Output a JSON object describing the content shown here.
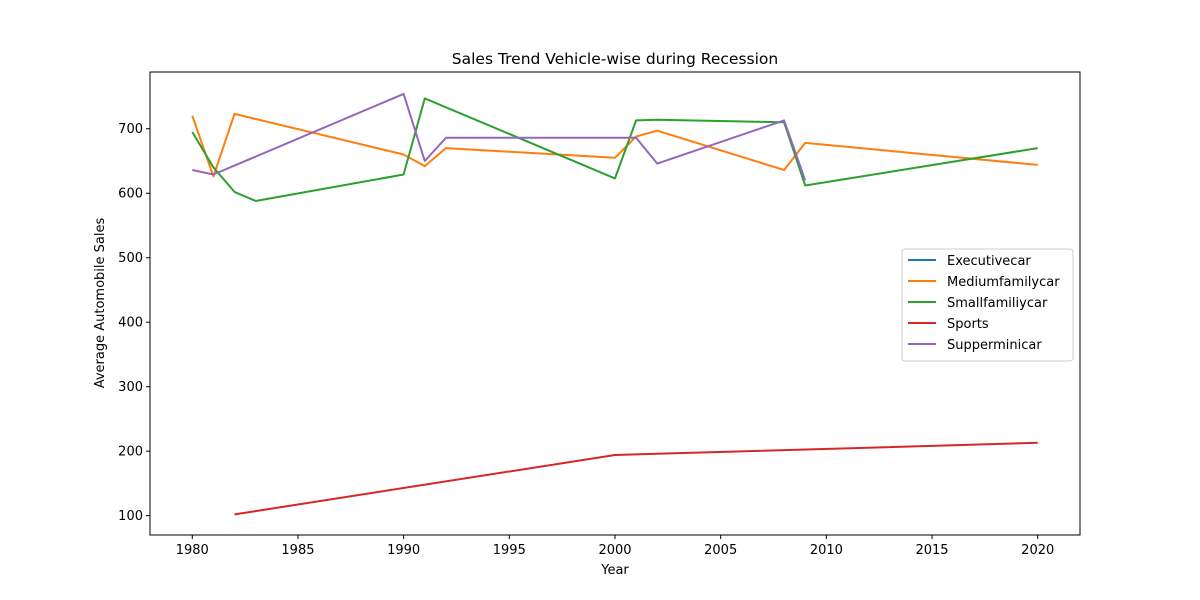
{
  "chart_data": {
    "type": "line",
    "title": "Sales Trend Vehicle-wise during Recession",
    "xlabel": "Year",
    "ylabel": "Average Automobile Sales",
    "xlim": [
      1978,
      2022
    ],
    "ylim": [
      70,
      788
    ],
    "xticks": [
      1980,
      1985,
      1990,
      1995,
      2000,
      2005,
      2010,
      2015,
      2020
    ],
    "yticks": [
      100,
      200,
      300,
      400,
      500,
      600,
      700
    ],
    "grid": false,
    "legend_position": "center-right",
    "series": [
      {
        "name": "Executivecar",
        "color": "#1f77b4",
        "points": []
      },
      {
        "name": "Mediumfamilycar",
        "color": "#ff7f0e",
        "points": [
          [
            1980,
            720
          ],
          [
            1981,
            626
          ],
          [
            1982,
            723
          ],
          [
            1990,
            660
          ],
          [
            1991,
            642
          ],
          [
            1992,
            670
          ],
          [
            2000,
            655
          ],
          [
            2001,
            688
          ],
          [
            2002,
            697
          ],
          [
            2008,
            636
          ],
          [
            2009,
            678
          ],
          [
            2020,
            644
          ]
        ]
      },
      {
        "name": "Smallfamiliycar",
        "color": "#2ca02c",
        "points": [
          [
            1980,
            695
          ],
          [
            1981,
            640
          ],
          [
            1982,
            602
          ],
          [
            1983,
            588
          ],
          [
            1990,
            629
          ],
          [
            1991,
            747
          ],
          [
            2000,
            623
          ],
          [
            2001,
            713
          ],
          [
            2002,
            714
          ],
          [
            2008,
            710
          ],
          [
            2009,
            612
          ],
          [
            2020,
            670
          ]
        ]
      },
      {
        "name": "Sports",
        "color": "#d62728",
        "points": [
          [
            1982,
            102
          ],
          [
            2000,
            194
          ],
          [
            2020,
            213
          ]
        ]
      },
      {
        "name": "Supperminicar",
        "color": "#9467bd",
        "points": [
          [
            1980,
            636
          ],
          [
            1981,
            629
          ],
          [
            1990,
            754
          ],
          [
            1991,
            650
          ],
          [
            1992,
            686
          ],
          [
            2001,
            686
          ],
          [
            2002,
            646
          ],
          [
            2008,
            713
          ],
          [
            2009,
            620
          ]
        ]
      }
    ]
  }
}
